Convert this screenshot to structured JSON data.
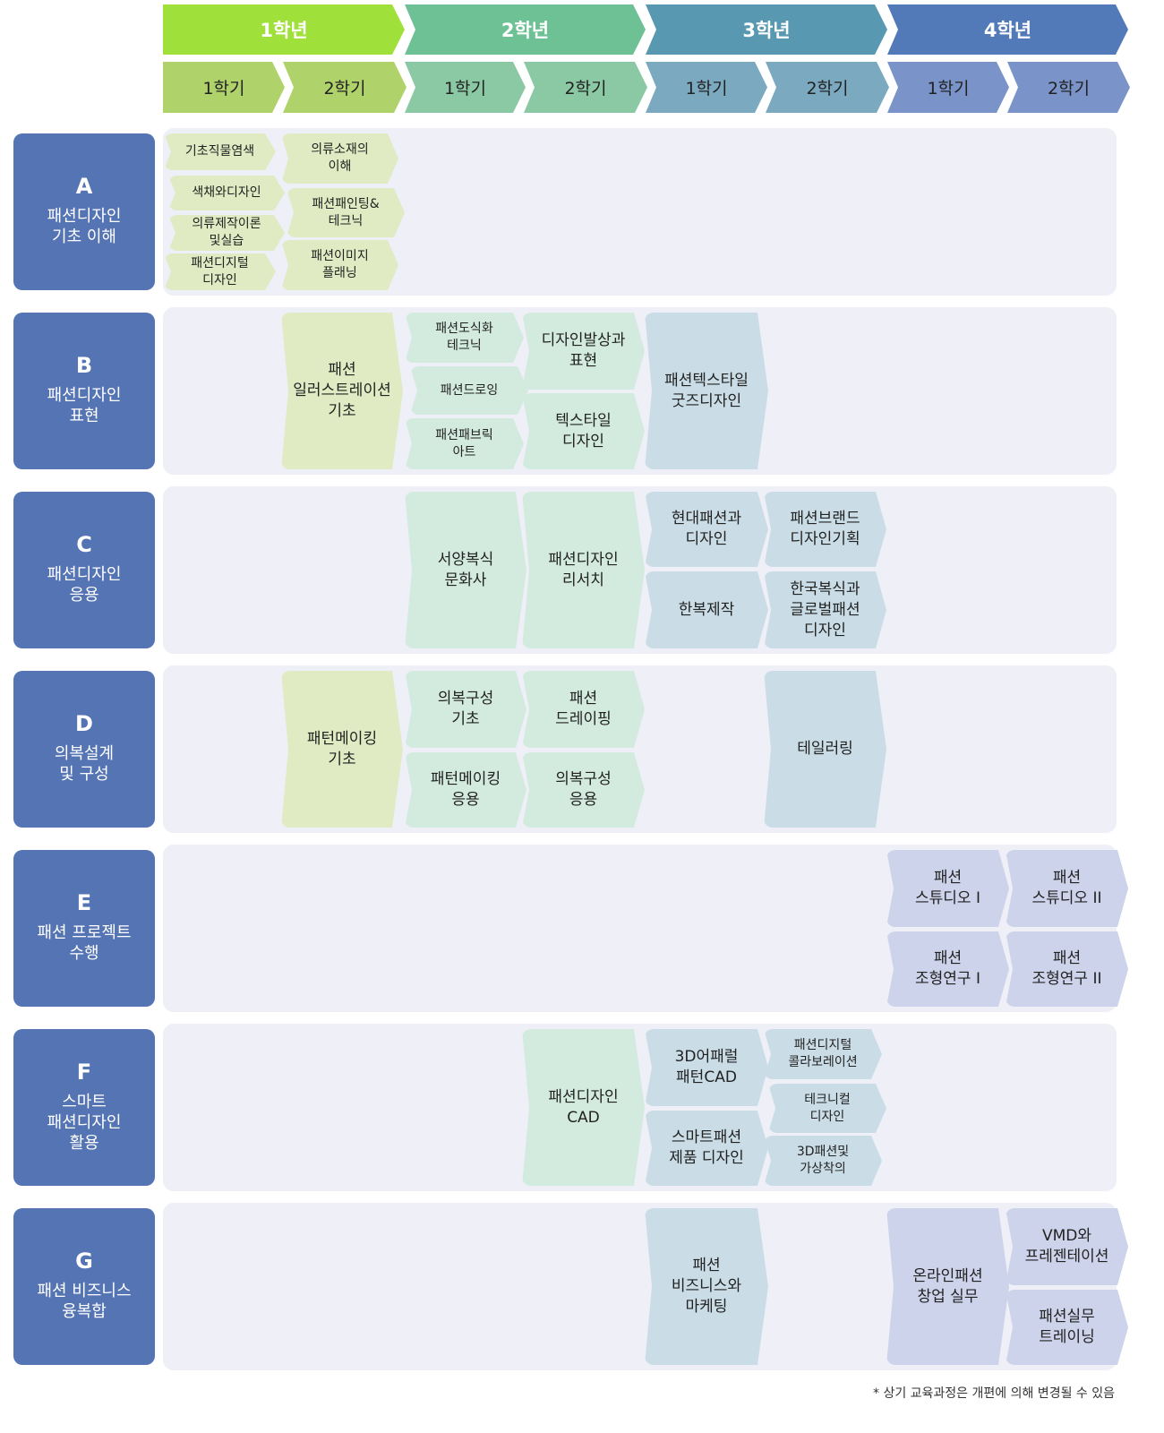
{
  "header": {
    "years": [
      {
        "label": "1학년",
        "color": "#a0e03a"
      },
      {
        "label": "2학년",
        "color": "#6ec095"
      },
      {
        "label": "3학년",
        "color": "#5898b0"
      },
      {
        "label": "4학년",
        "color": "#5279b8"
      }
    ],
    "semesters": [
      "1학기",
      "2학기",
      "1학기",
      "2학기",
      "1학기",
      "2학기",
      "1학기",
      "2학기"
    ],
    "semester_colors": [
      "#b0d26a",
      "#8bc9a5",
      "#7aa9c0",
      "#7a93c9"
    ]
  },
  "rows": [
    {
      "letter": "A",
      "title": "패션디자인\n기초 이해",
      "cells": [
        "기초직물염색",
        "색채와디자인",
        "의류제작이론\n및실습",
        "패션디지털\n디자인",
        "의류소재의\n이해",
        "패션패인팅&\n테크닉",
        "패션이미지\n플래닝"
      ]
    },
    {
      "letter": "B",
      "title": "패션디자인\n표현",
      "cells": [
        "패션\n일러스트레이션\n기초",
        "패션도식화\n테크닉",
        "패션드로잉",
        "패션패브릭\n아트",
        "디자인발상과\n표현",
        "텍스타일\n디자인",
        "패션텍스타일\n굿즈디자인"
      ]
    },
    {
      "letter": "C",
      "title": "패션디자인\n응용",
      "cells": [
        "서양복식\n문화사",
        "패션디자인\n리서치",
        "현대패션과\n디자인",
        "한복제작",
        "패션브랜드\n디자인기획",
        "한국복식과\n글로벌패션\n디자인"
      ]
    },
    {
      "letter": "D",
      "title": "의복설계\n및 구성",
      "cells": [
        "패턴메이킹\n기초",
        "의복구성\n기초",
        "패턴메이킹\n응용",
        "패션\n드레이핑",
        "의복구성\n응용",
        "테일러링"
      ]
    },
    {
      "letter": "E",
      "title": "패션 프로젝트\n수행",
      "cells": [
        "패션\n스튜디오 I",
        "패션\n조형연구 I",
        "패션\n스튜디오 II",
        "패션\n조형연구 II"
      ]
    },
    {
      "letter": "F",
      "title": "스마트\n패션디자인\n활용",
      "cells": [
        "패션디자인\nCAD",
        "3D어패럴\n패턴CAD",
        "스마트패션\n제품 디자인",
        "패션디지털\n콜라보레이션",
        "테크니컬\n디자인",
        "3D패션및\n가상착의"
      ]
    },
    {
      "letter": "G",
      "title": "패션 비즈니스\n융복합",
      "cells": [
        "패션\n비즈니스와\n마케팅",
        "온라인패션\n창업 실무",
        "VMD와\n프레젠테이션",
        "패션실무\n트레이닝"
      ]
    }
  ],
  "colors": {
    "label_bg": "#5574b4",
    "row_bg": "#eeeff7",
    "year1_cell": "#e0ebc3",
    "year2_cell": "#d3eadf",
    "year3_cell": "#cadde6",
    "year4_cell": "#ccd3ea"
  },
  "footnote": "* 상기 교육과정은 개편에 의해 변경될 수 있음"
}
